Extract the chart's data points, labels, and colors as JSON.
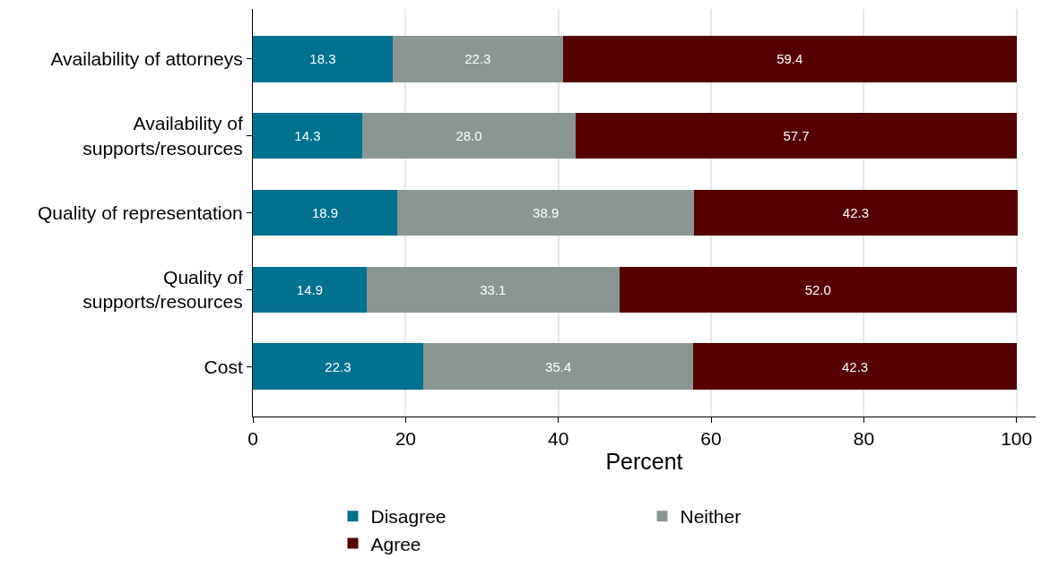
{
  "chart_data": {
    "type": "bar",
    "orientation": "horizontal",
    "stacked": true,
    "xlabel": "Percent",
    "categories": [
      "Availability of attorneys",
      "Availability of\nsupports/resources",
      "Quality of representation",
      "Quality of\nsupports/resources",
      "Cost"
    ],
    "series": [
      {
        "name": "Disagree",
        "color": "#00718f",
        "values": [
          18.3,
          14.3,
          18.9,
          14.9,
          22.3
        ],
        "value_labels": [
          "18.3",
          "14.3",
          "18.9",
          "14.9",
          "22.3"
        ]
      },
      {
        "name": "Neither",
        "color": "#8a9693",
        "values": [
          22.3,
          28,
          38.9,
          33.1,
          35.4
        ],
        "value_labels": [
          "22.3",
          "28.0",
          "38.9",
          "33.1",
          "35.4"
        ]
      },
      {
        "name": "Agree",
        "color": "#560000",
        "values": [
          59.4,
          57.7,
          42.3,
          52,
          42.3
        ],
        "value_labels": [
          "59.4",
          "57.7",
          "42.3",
          "52.0",
          "42.3"
        ]
      }
    ],
    "xlim": [
      0,
      102.5
    ],
    "xticks": [
      0,
      20,
      40,
      60,
      80,
      100
    ],
    "grid": "x",
    "legend": "bottom"
  }
}
